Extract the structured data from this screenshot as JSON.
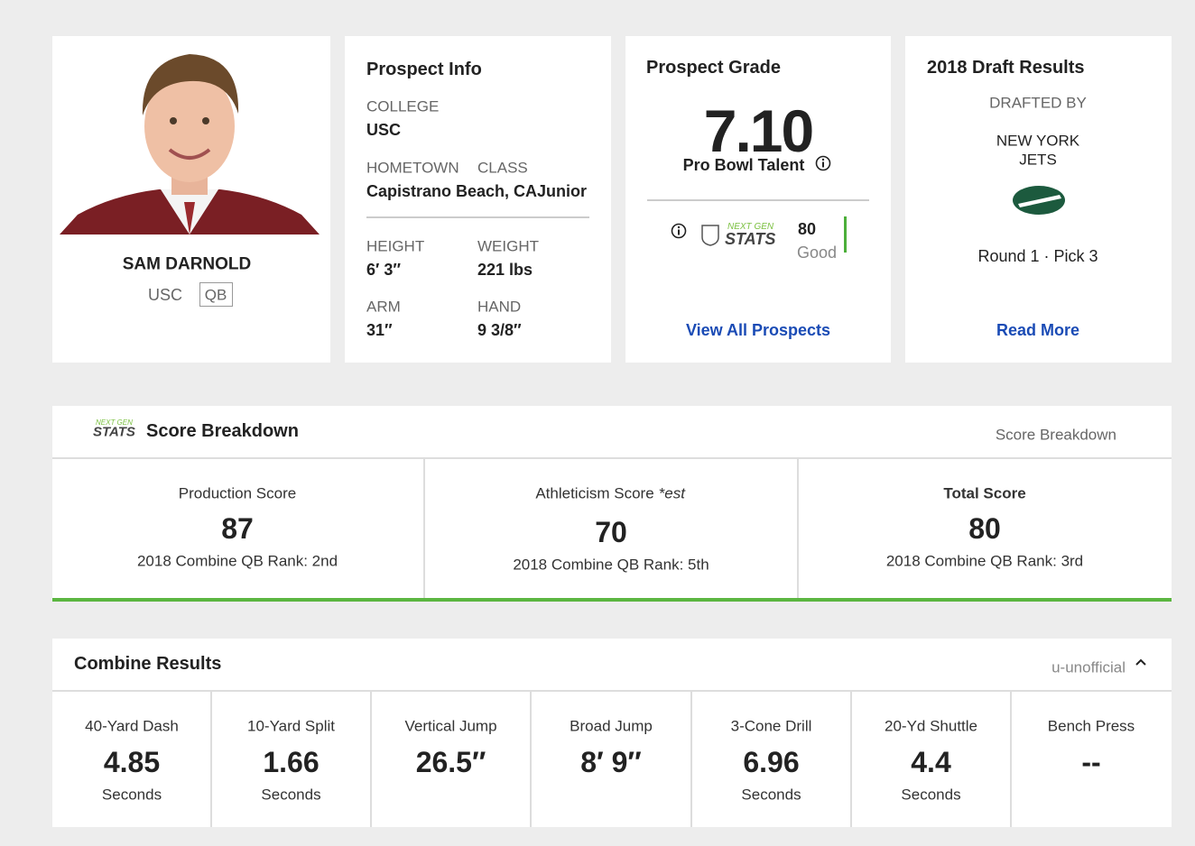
{
  "player": {
    "name": "SAM DARNOLD",
    "college": "USC",
    "position": "QB"
  },
  "prospect_info": {
    "title": "Prospect Info",
    "college_label": "COLLEGE",
    "college": "USC",
    "hometown_label": "HOMETOWN",
    "hometown": "Capistrano Beach, CA",
    "class_label": "CLASS",
    "class": "Junior",
    "height_label": "HEIGHT",
    "height": "6′ 3″",
    "weight_label": "WEIGHT",
    "weight": "221 lbs",
    "arm_label": "ARM",
    "arm": "31″",
    "hand_label": "HAND",
    "hand": "9 3/8″"
  },
  "prospect_grade": {
    "title": "Prospect Grade",
    "grade": "7.10",
    "grade_label": "Pro Bowl Talent",
    "ngs_score": 80,
    "ngs_label": "Good",
    "link": "View All Prospects"
  },
  "draft_results": {
    "title": "2018 Draft Results",
    "drafted_by": "DRAFTED BY",
    "team_city": "NEW YORK",
    "team_name": "JETS",
    "selection": "Round 1 · Pick 3",
    "link": "Read More"
  },
  "ngs_logo": {
    "top": "NEXT GEN",
    "bottom": "STATS"
  },
  "score_breakdown": {
    "title": "Score Breakdown",
    "info_label": "Score Breakdown",
    "scores": [
      {
        "label": "Production Score",
        "value": 87,
        "rank": "2018 Combine QB Rank: 2nd"
      },
      {
        "label": "Athleticism Score",
        "note": "*est",
        "value": 70,
        "rank": "2018 Combine QB Rank: 5th"
      },
      {
        "label": "Total Score",
        "value": 80,
        "rank": "2018 Combine QB Rank: 3rd"
      }
    ]
  },
  "combine_results": {
    "title": "Combine Results",
    "note": "u-unofficial",
    "drills": [
      {
        "name": "40-Yard Dash",
        "result": "4.85",
        "unit": "Seconds"
      },
      {
        "name": "10-Yard Split",
        "result": "1.66",
        "unit": "Seconds"
      },
      {
        "name": "Vertical Jump",
        "result": "26.5″"
      },
      {
        "name": "Broad Jump",
        "result": "8′ 9″"
      },
      {
        "name": "3-Cone Drill",
        "result": "6.96",
        "unit": "Seconds"
      },
      {
        "name": "20-Yd Shuttle",
        "result": "4.4",
        "unit": "Seconds"
      },
      {
        "name": "Bench Press",
        "result": "--"
      }
    ]
  }
}
